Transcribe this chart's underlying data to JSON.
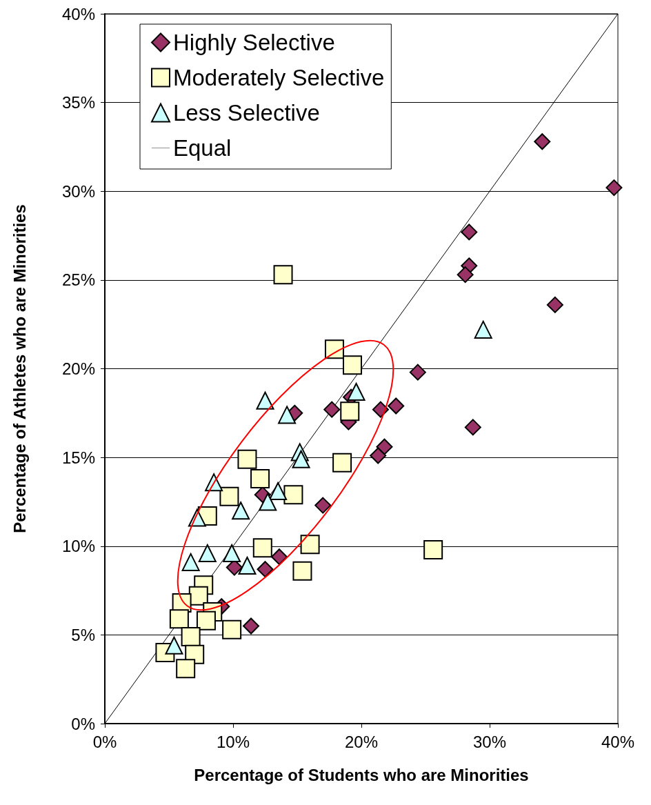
{
  "chart_data": {
    "type": "scatter",
    "xlabel": "Percentage of Students who are Minorities",
    "ylabel": "Percentage of Athletes who are Minorities",
    "xlim": [
      0,
      40
    ],
    "xticks": [
      {
        "value": 0,
        "label": "0%"
      },
      {
        "value": 10,
        "label": "10%"
      },
      {
        "value": 20,
        "label": "20%"
      },
      {
        "value": 30,
        "label": "30%"
      },
      {
        "value": 40,
        "label": "40%"
      }
    ],
    "ylim": [
      0,
      40
    ],
    "yticks": [
      {
        "value": 0,
        "label": "0%"
      },
      {
        "value": 5,
        "label": "5%"
      },
      {
        "value": 10,
        "label": "10%"
      },
      {
        "value": 15,
        "label": "15%"
      },
      {
        "value": 20,
        "label": "20%"
      },
      {
        "value": 25,
        "label": "25%"
      },
      {
        "value": 30,
        "label": "30%"
      },
      {
        "value": 35,
        "label": "35%"
      },
      {
        "value": 40,
        "label": "40%"
      }
    ],
    "grid": "y",
    "legend": "top left",
    "series": [
      {
        "name": "Highly Selective",
        "color": "#993366",
        "marker": "diamond",
        "x": [
          39.7,
          34.1,
          35.1,
          28.4,
          28.4,
          28.1,
          28.7,
          24.4,
          17.7,
          19.2,
          19.0,
          21.5,
          22.7,
          21.8,
          21.3,
          17.0,
          13.6,
          14.8,
          12.3,
          10.1,
          12.5,
          9.1,
          11.4
        ],
        "values": [
          30.2,
          32.8,
          23.6,
          27.7,
          25.8,
          25.3,
          16.7,
          19.8,
          17.7,
          18.4,
          17.0,
          17.7,
          17.9,
          15.6,
          15.1,
          12.3,
          9.4,
          17.5,
          12.9,
          8.8,
          8.7,
          6.6,
          5.5
        ]
      },
      {
        "name": "Moderately Selective",
        "color": "#ffffcc",
        "marker": "square",
        "x": [
          13.9,
          17.9,
          19.3,
          19.1,
          18.5,
          14.7,
          16.0,
          15.4,
          25.6,
          11.1,
          12.1,
          9.7,
          8.0,
          12.3,
          7.7,
          7.3,
          6.0,
          8.4,
          5.8,
          7.9,
          9.9,
          6.7,
          4.7,
          7.0,
          6.3
        ],
        "values": [
          25.3,
          21.1,
          20.2,
          17.6,
          14.7,
          12.9,
          10.1,
          8.6,
          9.8,
          14.9,
          13.8,
          12.8,
          11.7,
          9.9,
          7.8,
          7.2,
          6.8,
          6.3,
          5.9,
          5.8,
          5.3,
          4.9,
          4.0,
          3.9,
          3.1
        ]
      },
      {
        "name": "Less Selective",
        "color": "#ccffff",
        "marker": "triangle",
        "x": [
          29.5,
          19.6,
          15.2,
          15.3,
          13.5,
          14.2,
          12.5,
          12.7,
          8.5,
          10.6,
          7.2,
          8.0,
          6.7,
          9.9,
          11.1,
          5.4
        ],
        "values": [
          22.2,
          18.7,
          15.3,
          14.9,
          13.1,
          17.4,
          18.2,
          12.5,
          13.6,
          12.0,
          11.6,
          9.6,
          9.1,
          9.6,
          8.9,
          4.4
        ]
      },
      {
        "name": "Equal",
        "type": "line",
        "color": "#000000",
        "marker": "none",
        "line_style": "solid",
        "x": [
          0,
          40
        ],
        "values": [
          0,
          40
        ]
      }
    ]
  }
}
